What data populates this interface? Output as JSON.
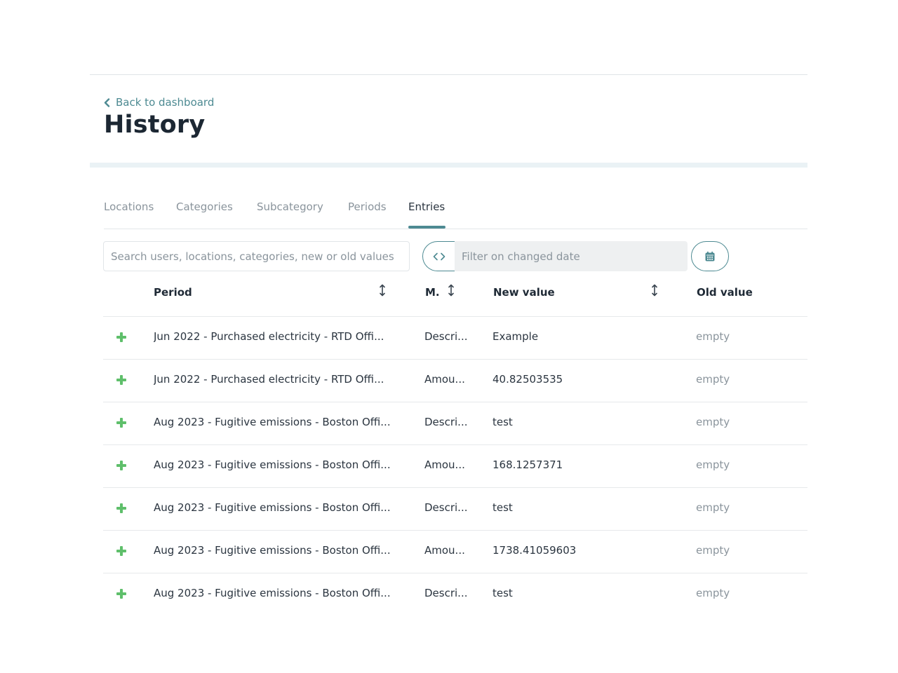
{
  "nav": {
    "back_label": "Back to dashboard"
  },
  "page": {
    "title": "History"
  },
  "tabs": [
    {
      "label": "Locations",
      "active": false
    },
    {
      "label": "Categories",
      "active": false
    },
    {
      "label": "Subcategory",
      "active": false
    },
    {
      "label": "Periods",
      "active": false
    },
    {
      "label": "Entries",
      "active": true
    }
  ],
  "filters": {
    "search_placeholder": "Search users, locations, categories, new or old values",
    "search_value": "",
    "date_placeholder": "Filter on changed date",
    "date_value": "",
    "date_toggle_icon": "code-brackets-icon",
    "calendar_icon": "calendar-icon"
  },
  "table": {
    "headers": {
      "period": "Period",
      "m": "M.",
      "new_value": "New value",
      "old_value": "Old value"
    },
    "row_icon": "plus-icon",
    "rows": [
      {
        "period": "Jun 2022 - Purchased electricity - RTD Offi...",
        "m": "Descri...",
        "new_value": "Example",
        "old_value": "empty"
      },
      {
        "period": "Jun 2022 - Purchased electricity - RTD Offi...",
        "m": "Amou...",
        "new_value": "40.82503535",
        "old_value": "empty"
      },
      {
        "period": "Aug 2023 - Fugitive emissions - Boston Offi...",
        "m": "Descri...",
        "new_value": "test",
        "old_value": "empty"
      },
      {
        "period": "Aug 2023 - Fugitive emissions - Boston Offi...",
        "m": "Amou...",
        "new_value": "168.1257371",
        "old_value": "empty"
      },
      {
        "period": "Aug 2023 - Fugitive emissions - Boston Offi...",
        "m": "Descri...",
        "new_value": "test",
        "old_value": "empty"
      },
      {
        "period": "Aug 2023 - Fugitive emissions - Boston Offi...",
        "m": "Amou...",
        "new_value": "1738.41059603",
        "old_value": "empty"
      },
      {
        "period": "Aug 2023 - Fugitive emissions - Boston Offi...",
        "m": "Descri...",
        "new_value": "test",
        "old_value": "empty"
      }
    ]
  },
  "colors": {
    "accent": "#4d8a92",
    "add_icon": "#5fbf6b",
    "muted_text": "#8a949c"
  }
}
